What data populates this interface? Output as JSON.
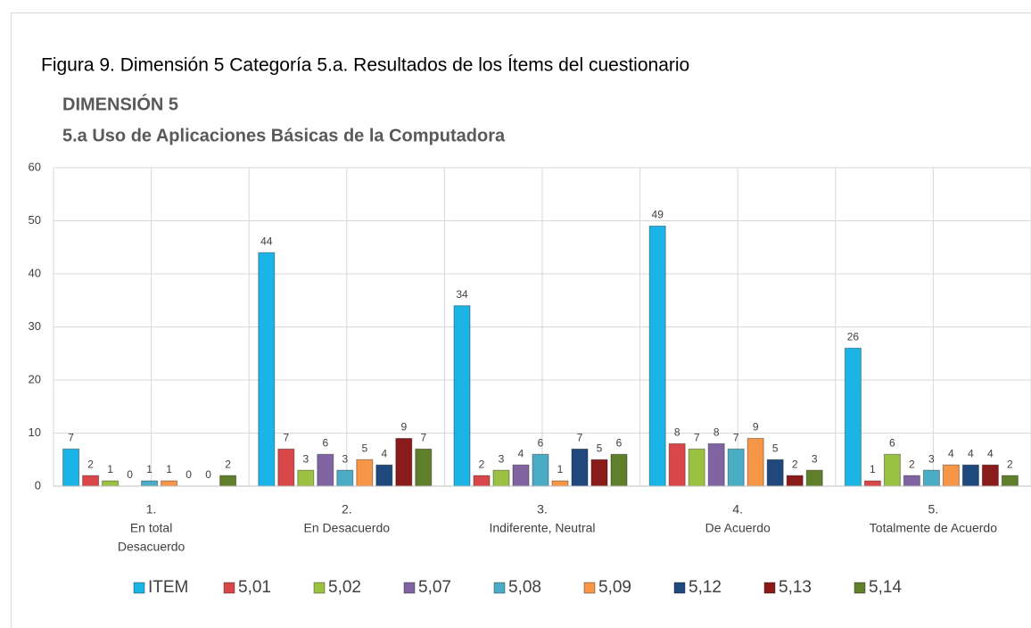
{
  "caption": "Figura 9. Dimensión 5  Categoría 5.a. Resultados de los Ítems del cuestionario",
  "chart_data": {
    "type": "bar",
    "title": "DIMENSIÓN 5",
    "subtitle": "5.a Uso de Aplicaciones Básicas de la Computadora",
    "categories": [
      [
        "1.",
        "En total",
        "Desacuerdo"
      ],
      [
        "2.",
        "En Desacuerdo"
      ],
      [
        "3.",
        "Indiferente, Neutral"
      ],
      [
        "4.",
        "De  Acuerdo"
      ],
      [
        "5.",
        "Totalmente de Acuerdo"
      ]
    ],
    "series": [
      {
        "name": "ITEM",
        "color": "#1ab4e6",
        "values": [
          7,
          44,
          34,
          49,
          26
        ]
      },
      {
        "name": "5,01",
        "color": "#d9464a",
        "values": [
          2,
          7,
          2,
          8,
          1
        ]
      },
      {
        "name": "5,02",
        "color": "#9bc142",
        "values": [
          1,
          3,
          3,
          7,
          6
        ]
      },
      {
        "name": "5,07",
        "color": "#8064a2",
        "values": [
          0,
          6,
          4,
          8,
          2
        ]
      },
      {
        "name": "5,08",
        "color": "#4bacc6",
        "values": [
          1,
          3,
          6,
          7,
          3
        ]
      },
      {
        "name": "5,09",
        "color": "#f79646",
        "values": [
          1,
          5,
          1,
          9,
          4
        ]
      },
      {
        "name": "5,12",
        "color": "#1f497d",
        "values": [
          0,
          4,
          7,
          5,
          4
        ]
      },
      {
        "name": "5,13",
        "color": "#8b1a1a",
        "values": [
          0,
          9,
          5,
          2,
          4
        ]
      },
      {
        "name": "5,14",
        "color": "#5f7f2a",
        "values": [
          2,
          7,
          6,
          3,
          2
        ]
      }
    ],
    "ylim": [
      0,
      60
    ],
    "yticks": [
      0,
      10,
      20,
      30,
      40,
      50,
      60
    ],
    "grid": true,
    "legend": "bottom"
  }
}
